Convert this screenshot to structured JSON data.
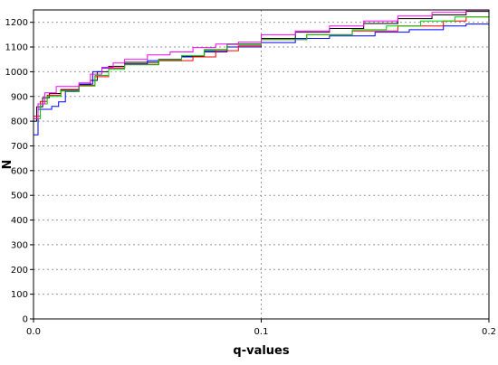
{
  "chart_data": {
    "type": "line",
    "title": "",
    "xlabel": "q-values",
    "ylabel": "N",
    "xlim": [
      0,
      0.2
    ],
    "ylim": [
      0,
      1250
    ],
    "xticks": [
      0.0,
      0.1,
      0.2
    ],
    "xtick_labels": [
      "0.0",
      "0.1",
      "0.2"
    ],
    "yticks": [
      0,
      100,
      200,
      300,
      400,
      500,
      600,
      700,
      800,
      900,
      1000,
      1100,
      1200
    ],
    "ytick_labels": [
      "0",
      "100",
      "200",
      "300",
      "400",
      "500",
      "600",
      "700",
      "800",
      "900",
      "1000",
      "1100",
      "1200"
    ],
    "grid": true,
    "step": true,
    "series": [
      {
        "color": "#000000",
        "points": [
          [
            0,
            0
          ],
          [
            0,
            800
          ],
          [
            0.0014,
            800
          ],
          [
            0.0014,
            858
          ],
          [
            0.004,
            858
          ],
          [
            0.004,
            895
          ],
          [
            0.007,
            895
          ],
          [
            0.007,
            912
          ],
          [
            0.012,
            912
          ],
          [
            0.012,
            928
          ],
          [
            0.02,
            928
          ],
          [
            0.02,
            948
          ],
          [
            0.025,
            948
          ],
          [
            0.025,
            965
          ],
          [
            0.028,
            965
          ],
          [
            0.028,
            1000
          ],
          [
            0.033,
            1000
          ],
          [
            0.033,
            1022
          ],
          [
            0.04,
            1022
          ],
          [
            0.04,
            1038
          ],
          [
            0.055,
            1038
          ],
          [
            0.055,
            1050
          ],
          [
            0.065,
            1050
          ],
          [
            0.065,
            1062
          ],
          [
            0.075,
            1062
          ],
          [
            0.075,
            1085
          ],
          [
            0.085,
            1085
          ],
          [
            0.085,
            1112
          ],
          [
            0.1,
            1112
          ],
          [
            0.1,
            1135
          ],
          [
            0.115,
            1135
          ],
          [
            0.115,
            1160
          ],
          [
            0.13,
            1160
          ],
          [
            0.13,
            1175
          ],
          [
            0.145,
            1175
          ],
          [
            0.145,
            1195
          ],
          [
            0.16,
            1195
          ],
          [
            0.16,
            1215
          ],
          [
            0.175,
            1215
          ],
          [
            0.175,
            1230
          ],
          [
            0.19,
            1230
          ],
          [
            0.19,
            1244
          ],
          [
            0.2,
            1244
          ]
        ]
      },
      {
        "color": "#0000ff",
        "points": [
          [
            0,
            0
          ],
          [
            0,
            745
          ],
          [
            0.002,
            745
          ],
          [
            0.002,
            848
          ],
          [
            0.008,
            848
          ],
          [
            0.008,
            860
          ],
          [
            0.011,
            860
          ],
          [
            0.011,
            878
          ],
          [
            0.014,
            878
          ],
          [
            0.014,
            920
          ],
          [
            0.02,
            920
          ],
          [
            0.02,
            950
          ],
          [
            0.026,
            950
          ],
          [
            0.026,
            1000
          ],
          [
            0.03,
            1000
          ],
          [
            0.03,
            1015
          ],
          [
            0.04,
            1015
          ],
          [
            0.04,
            1032
          ],
          [
            0.05,
            1032
          ],
          [
            0.05,
            1045
          ],
          [
            0.065,
            1045
          ],
          [
            0.065,
            1060
          ],
          [
            0.075,
            1060
          ],
          [
            0.075,
            1080
          ],
          [
            0.085,
            1080
          ],
          [
            0.085,
            1100
          ],
          [
            0.1,
            1100
          ],
          [
            0.1,
            1118
          ],
          [
            0.115,
            1118
          ],
          [
            0.115,
            1135
          ],
          [
            0.13,
            1135
          ],
          [
            0.13,
            1145
          ],
          [
            0.15,
            1145
          ],
          [
            0.15,
            1160
          ],
          [
            0.165,
            1160
          ],
          [
            0.165,
            1170
          ],
          [
            0.18,
            1170
          ],
          [
            0.18,
            1185
          ],
          [
            0.19,
            1185
          ],
          [
            0.19,
            1193
          ],
          [
            0.2,
            1193
          ]
        ]
      },
      {
        "color": "#ff0000",
        "points": [
          [
            0,
            0
          ],
          [
            0,
            820
          ],
          [
            0.003,
            820
          ],
          [
            0.003,
            880
          ],
          [
            0.006,
            880
          ],
          [
            0.006,
            905
          ],
          [
            0.012,
            905
          ],
          [
            0.012,
            925
          ],
          [
            0.02,
            925
          ],
          [
            0.02,
            945
          ],
          [
            0.027,
            945
          ],
          [
            0.027,
            980
          ],
          [
            0.033,
            980
          ],
          [
            0.033,
            1015
          ],
          [
            0.04,
            1015
          ],
          [
            0.04,
            1030
          ],
          [
            0.055,
            1030
          ],
          [
            0.055,
            1045
          ],
          [
            0.07,
            1045
          ],
          [
            0.07,
            1060
          ],
          [
            0.08,
            1060
          ],
          [
            0.08,
            1085
          ],
          [
            0.09,
            1085
          ],
          [
            0.09,
            1105
          ],
          [
            0.1,
            1105
          ],
          [
            0.1,
            1130
          ],
          [
            0.12,
            1130
          ],
          [
            0.12,
            1150
          ],
          [
            0.14,
            1150
          ],
          [
            0.14,
            1165
          ],
          [
            0.16,
            1165
          ],
          [
            0.16,
            1185
          ],
          [
            0.18,
            1185
          ],
          [
            0.18,
            1205
          ],
          [
            0.19,
            1205
          ],
          [
            0.19,
            1222
          ],
          [
            0.2,
            1222
          ]
        ]
      },
      {
        "color": "#00cc00",
        "points": [
          [
            0,
            0
          ],
          [
            0,
            810
          ],
          [
            0.003,
            810
          ],
          [
            0.003,
            870
          ],
          [
            0.006,
            870
          ],
          [
            0.006,
            900
          ],
          [
            0.012,
            900
          ],
          [
            0.012,
            922
          ],
          [
            0.02,
            922
          ],
          [
            0.02,
            942
          ],
          [
            0.027,
            942
          ],
          [
            0.027,
            985
          ],
          [
            0.033,
            985
          ],
          [
            0.033,
            1010
          ],
          [
            0.04,
            1010
          ],
          [
            0.04,
            1028
          ],
          [
            0.055,
            1028
          ],
          [
            0.055,
            1048
          ],
          [
            0.065,
            1048
          ],
          [
            0.065,
            1065
          ],
          [
            0.075,
            1065
          ],
          [
            0.075,
            1090
          ],
          [
            0.085,
            1090
          ],
          [
            0.085,
            1110
          ],
          [
            0.1,
            1110
          ],
          [
            0.1,
            1130
          ],
          [
            0.12,
            1130
          ],
          [
            0.12,
            1150
          ],
          [
            0.14,
            1150
          ],
          [
            0.14,
            1170
          ],
          [
            0.155,
            1170
          ],
          [
            0.155,
            1185
          ],
          [
            0.17,
            1185
          ],
          [
            0.17,
            1205
          ],
          [
            0.185,
            1205
          ],
          [
            0.185,
            1222
          ],
          [
            0.2,
            1222
          ]
        ]
      },
      {
        "color": "#ff00ff",
        "points": [
          [
            0,
            0
          ],
          [
            0,
            810
          ],
          [
            0.002,
            810
          ],
          [
            0.002,
            870
          ],
          [
            0.005,
            870
          ],
          [
            0.005,
            915
          ],
          [
            0.01,
            915
          ],
          [
            0.01,
            940
          ],
          [
            0.02,
            940
          ],
          [
            0.02,
            955
          ],
          [
            0.025,
            955
          ],
          [
            0.025,
            990
          ],
          [
            0.03,
            990
          ],
          [
            0.03,
            1018
          ],
          [
            0.035,
            1018
          ],
          [
            0.035,
            1035
          ],
          [
            0.04,
            1035
          ],
          [
            0.04,
            1050
          ],
          [
            0.05,
            1050
          ],
          [
            0.05,
            1068
          ],
          [
            0.06,
            1068
          ],
          [
            0.06,
            1080
          ],
          [
            0.07,
            1080
          ],
          [
            0.07,
            1098
          ],
          [
            0.08,
            1098
          ],
          [
            0.08,
            1112
          ],
          [
            0.09,
            1112
          ],
          [
            0.09,
            1120
          ],
          [
            0.1,
            1120
          ],
          [
            0.1,
            1150
          ],
          [
            0.115,
            1150
          ],
          [
            0.115,
            1165
          ],
          [
            0.13,
            1165
          ],
          [
            0.13,
            1185
          ],
          [
            0.145,
            1185
          ],
          [
            0.145,
            1205
          ],
          [
            0.16,
            1205
          ],
          [
            0.16,
            1225
          ],
          [
            0.175,
            1225
          ],
          [
            0.175,
            1240
          ],
          [
            0.19,
            1240
          ],
          [
            0.19,
            1249
          ],
          [
            0.2,
            1249
          ]
        ]
      }
    ]
  }
}
